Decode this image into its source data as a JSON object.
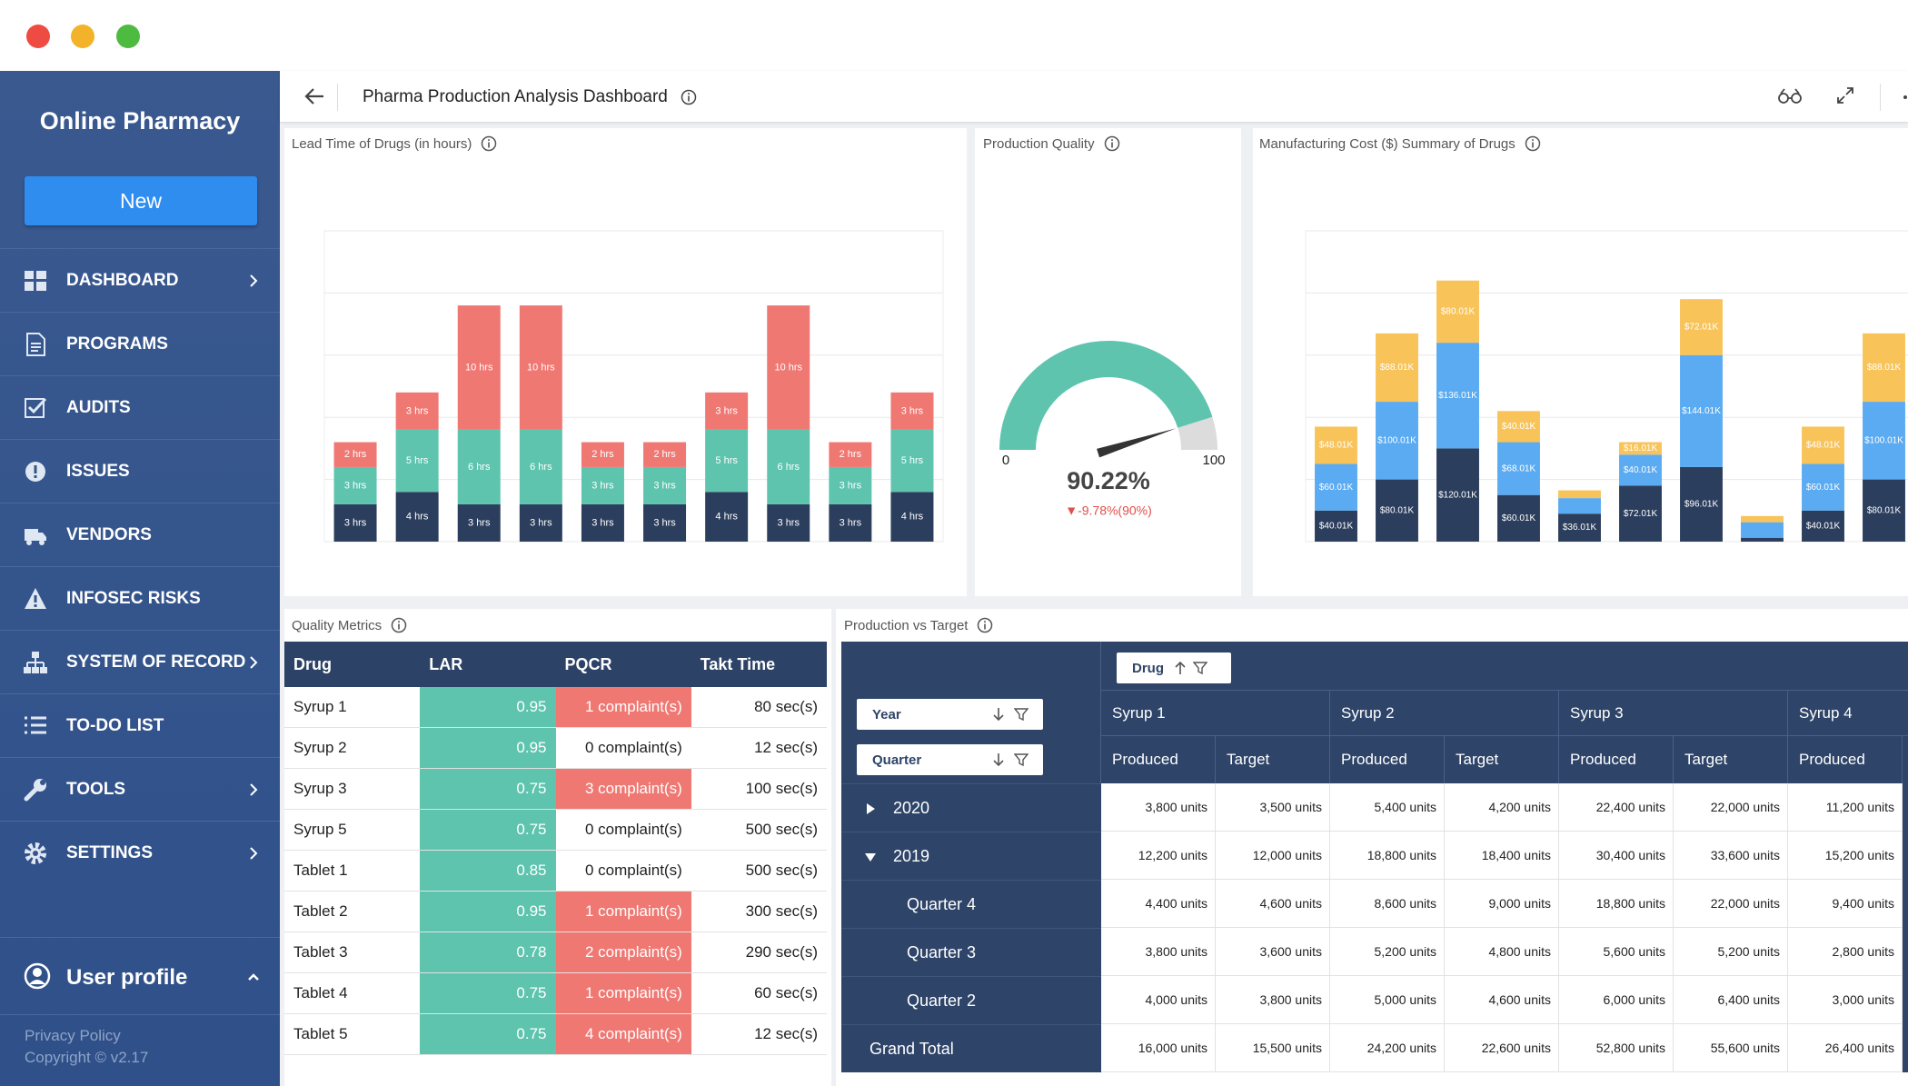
{
  "sidebar": {
    "brand": "Online Pharmacy",
    "new_button": "New",
    "menu": [
      "DASHBOARD",
      "PROGRAMS",
      "AUDITS",
      "ISSUES",
      "VENDORS",
      "INFOSEC RISKS",
      "SYSTEM OF RECORD",
      "TO-DO LIST",
      "TOOLS",
      "SETTINGS"
    ],
    "user_profile": "User profile",
    "privacy": "Privacy Policy",
    "copyright": "Copyright © v2.17"
  },
  "header": {
    "title": "Pharma Production Analysis Dashboard"
  },
  "panels": {
    "lead_time": "Lead Time of Drugs (in hours)",
    "production_quality": "Production Quality",
    "manufacturing_cost": "Manufacturing Cost ($) Summary of Drugs",
    "quality_metrics": "Quality Metrics",
    "production_vs_target": "Production vs Target"
  },
  "chart_data": [
    {
      "type": "bar",
      "stacked": true,
      "ylim": [
        0,
        25
      ],
      "yticks": [
        0,
        5,
        10,
        15,
        20,
        25
      ],
      "grid": true,
      "series": [
        {
          "color": "#2c3e5d",
          "values": [
            3,
            4,
            3,
            3,
            3,
            3,
            4,
            3,
            3,
            4
          ],
          "value_labels": [
            "3 hrs",
            "4 hrs",
            "3 hrs",
            "3 hrs",
            "3 hrs",
            "3 hrs",
            "4 hrs",
            "3 hrs",
            "3 hrs",
            "4 hrs"
          ]
        },
        {
          "color": "#5ec4ae",
          "values": [
            3,
            5,
            6,
            6,
            3,
            3,
            5,
            6,
            3,
            5
          ],
          "value_labels": [
            "3 hrs",
            "5 hrs",
            "6 hrs",
            "6 hrs",
            "3 hrs",
            "3 hrs",
            "5 hrs",
            "6 hrs",
            "3 hrs",
            "5 hrs"
          ]
        },
        {
          "color": "#ef7873",
          "values": [
            2,
            3,
            10,
            10,
            2,
            2,
            3,
            10,
            2,
            3
          ],
          "value_labels": [
            "2 hrs",
            "3 hrs",
            "10 hrs",
            "10 hrs",
            "2 hrs",
            "2 hrs",
            "3 hrs",
            "10 hrs",
            "2 hrs",
            "3 hrs"
          ]
        }
      ]
    },
    {
      "type": "gauge",
      "min": 0,
      "max": 100,
      "value": 90.22,
      "value_label": "90.22%",
      "annotation": "▼-9.78%(90%)",
      "color": "#5ec4ae",
      "track_color": "#dcdcdc"
    },
    {
      "type": "bar",
      "stacked": true,
      "ylim": [
        0,
        400
      ],
      "yticks": [
        0,
        80,
        160,
        240,
        320,
        400
      ],
      "grid": true,
      "series": [
        {
          "color": "#2c3e5d",
          "values": [
            40.01,
            80.01,
            120.01,
            60.01,
            36.01,
            72.01,
            96.01,
            5,
            40.01,
            80.01
          ],
          "value_labels": [
            "$40.01K",
            "$80.01K",
            "$120.01K",
            "$60.01K",
            "$36.01K",
            "$72.01K",
            "$96.01K",
            null,
            "$40.01K",
            "$80.01K"
          ]
        },
        {
          "color": "#5aabf2",
          "values": [
            60.01,
            100.01,
            136.01,
            68.01,
            20,
            40.01,
            144.01,
            20,
            60.01,
            100.01
          ],
          "value_labels": [
            "$60.01K",
            "$100.01K",
            "$136.01K",
            "$68.01K",
            null,
            "$40.01K",
            "$144.01K",
            null,
            "$60.01K",
            "$100.01K"
          ]
        },
        {
          "color": "#f8c45a",
          "values": [
            48.01,
            88.01,
            80.01,
            40.01,
            10,
            16.01,
            72.01,
            8,
            48.01,
            88.01
          ],
          "value_labels": [
            "$48.01K",
            "$88.01K",
            "$80.01K",
            "$40.01K",
            null,
            "$16.01K",
            "$72.01K",
            null,
            "$48.01K",
            "$88.01K"
          ]
        }
      ]
    }
  ],
  "quality_metrics": {
    "columns": [
      "Drug",
      "LAR",
      "PQCR",
      "Takt Time"
    ],
    "rows": [
      [
        "Syrup 1",
        0.95,
        "1 complaint(s)",
        "80 sec(s)"
      ],
      [
        "Syrup 2",
        0.95,
        "0 complaint(s)",
        "12 sec(s)"
      ],
      [
        "Syrup 3",
        0.75,
        "3 complaint(s)",
        "100 sec(s)"
      ],
      [
        "Syrup 5",
        0.75,
        "0 complaint(s)",
        "500 sec(s)"
      ],
      [
        "Tablet 1",
        0.85,
        "0 complaint(s)",
        "500 sec(s)"
      ],
      [
        "Tablet 2",
        0.95,
        "1 complaint(s)",
        "300 sec(s)"
      ],
      [
        "Tablet 3",
        0.78,
        "2 complaint(s)",
        "290 sec(s)"
      ],
      [
        "Tablet 4",
        0.75,
        "1 complaint(s)",
        "60 sec(s)"
      ],
      [
        "Tablet 5",
        0.75,
        "4 complaint(s)",
        "12 sec(s)"
      ]
    ]
  },
  "production_vs_target": {
    "column_field": "Drug",
    "row_fields": [
      "Year",
      "Quarter"
    ],
    "drugs": [
      "Syrup 1",
      "Syrup 2",
      "Syrup 3",
      "Syrup 4"
    ],
    "measures": [
      "Produced",
      "Target",
      "Produced",
      "Target",
      "Produced",
      "Target",
      "Produced"
    ],
    "rows": [
      {
        "label": "2020",
        "level": 0,
        "expanded": false,
        "values": [
          "3,800 units",
          "3,500 units",
          "5,400 units",
          "4,200 units",
          "22,400 units",
          "22,000 units",
          "11,200 units"
        ]
      },
      {
        "label": "2019",
        "level": 0,
        "expanded": true,
        "values": [
          "12,200 units",
          "12,000 units",
          "18,800 units",
          "18,400 units",
          "30,400 units",
          "33,600 units",
          "15,200 units"
        ]
      },
      {
        "label": "Quarter 4",
        "level": 1,
        "values": [
          "4,400 units",
          "4,600 units",
          "8,600 units",
          "9,000 units",
          "18,800 units",
          "22,000 units",
          "9,400 units"
        ]
      },
      {
        "label": "Quarter 3",
        "level": 1,
        "values": [
          "3,800 units",
          "3,600 units",
          "5,200 units",
          "4,800 units",
          "5,600 units",
          "5,200 units",
          "2,800 units"
        ]
      },
      {
        "label": "Quarter 2",
        "level": 1,
        "values": [
          "4,000 units",
          "3,800 units",
          "5,000 units",
          "4,600 units",
          "6,000 units",
          "6,400 units",
          "3,000 units"
        ]
      },
      {
        "label": "Grand Total",
        "level": 0,
        "values": [
          "16,000 units",
          "15,500 units",
          "24,200 units",
          "22,600 units",
          "52,800 units",
          "55,600 units",
          "26,400 units"
        ]
      }
    ]
  }
}
